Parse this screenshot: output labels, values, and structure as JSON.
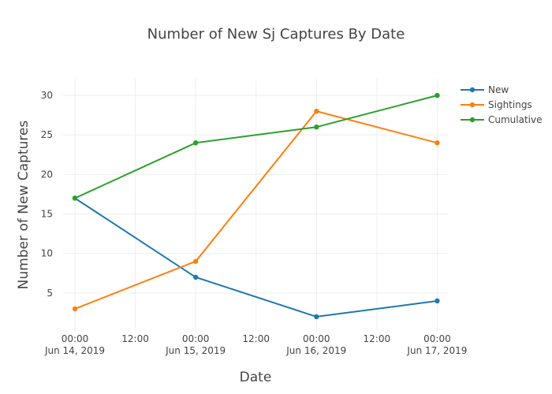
{
  "chart_data": {
    "type": "line",
    "title": "Number of New Sj Captures By Date",
    "xlabel": "Date",
    "ylabel": "Number of New Captures",
    "x": [
      "2019-06-14 00:00",
      "2019-06-15 00:00",
      "2019-06-16 00:00",
      "2019-06-17 00:00"
    ],
    "x_ticks": [
      {
        "x": "2019-06-14 00:00",
        "line1": "00:00",
        "line2": "Jun 14, 2019"
      },
      {
        "x": "2019-06-14 12:00",
        "line1": "12:00",
        "line2": ""
      },
      {
        "x": "2019-06-15 00:00",
        "line1": "00:00",
        "line2": "Jun 15, 2019"
      },
      {
        "x": "2019-06-15 12:00",
        "line1": "12:00",
        "line2": ""
      },
      {
        "x": "2019-06-16 00:00",
        "line1": "00:00",
        "line2": "Jun 16, 2019"
      },
      {
        "x": "2019-06-16 12:00",
        "line1": "12:00",
        "line2": ""
      },
      {
        "x": "2019-06-17 00:00",
        "line1": "00:00",
        "line2": "Jun 17, 2019"
      }
    ],
    "xlim": [
      "2019-06-13 21:39",
      "2019-06-17 02:17"
    ],
    "y_ticks": [
      5,
      10,
      15,
      20,
      25,
      30
    ],
    "ylim": [
      0.2,
      32.1
    ],
    "grid": true,
    "legend_position": "top-right",
    "series": [
      {
        "name": "New",
        "color": "#1f77b4",
        "values": [
          17,
          7,
          2,
          4
        ]
      },
      {
        "name": "Sightings",
        "color": "#ff7f0e",
        "values": [
          3,
          9,
          28,
          24
        ]
      },
      {
        "name": "Cumulative",
        "color": "#2ca02c",
        "values": [
          17,
          24,
          26,
          30
        ]
      }
    ]
  }
}
